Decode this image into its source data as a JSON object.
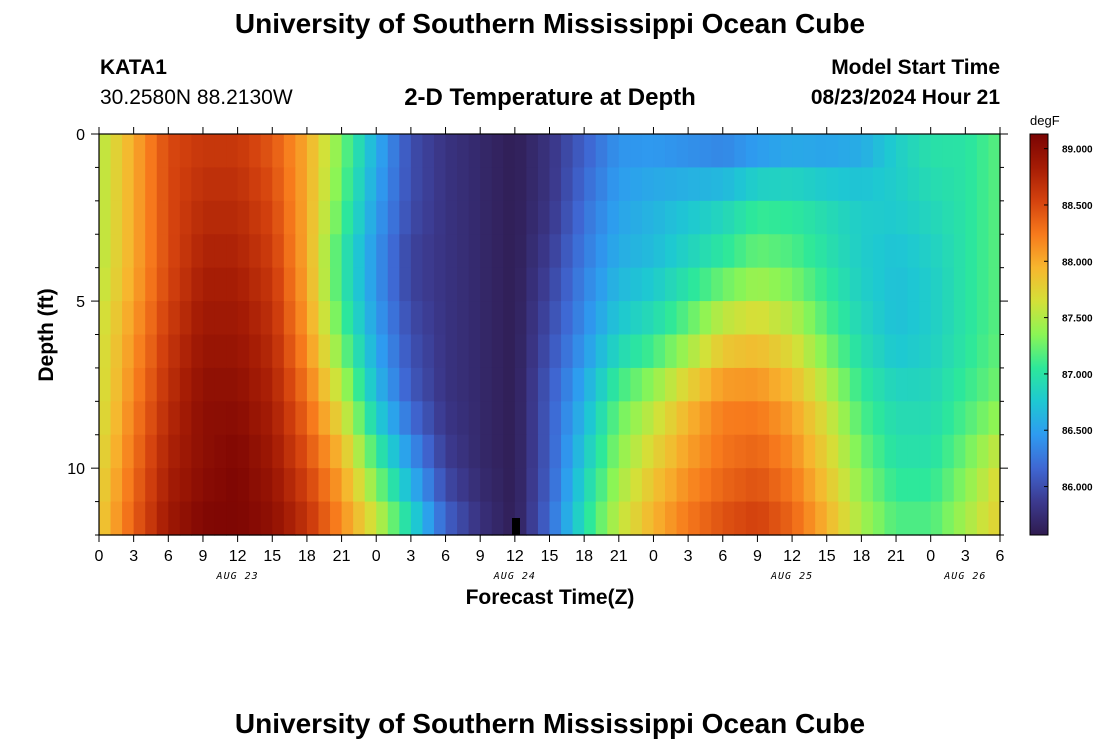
{
  "header": {
    "title": "University of Southern Mississippi Ocean Cube",
    "station_id": "KATA1",
    "coords": "30.2580N  88.2130W",
    "subtitle": "2-D Temperature at Depth",
    "model_start_label": "Model Start Time",
    "model_start_time": "08/23/2024 Hour 21"
  },
  "footer": {
    "title": "University of Southern Mississippi Ocean Cube"
  },
  "chart_data": {
    "type": "heatmap",
    "title": "2-D Temperature at Depth",
    "xlabel": "Forecast Time(Z)",
    "ylabel": "Depth (ft)",
    "x_hours_range": [
      0,
      78
    ],
    "x_ticks": [
      {
        "hour": 0,
        "label": "0"
      },
      {
        "hour": 3,
        "label": "3"
      },
      {
        "hour": 6,
        "label": "6"
      },
      {
        "hour": 9,
        "label": "9"
      },
      {
        "hour": 12,
        "label": "12"
      },
      {
        "hour": 15,
        "label": "15"
      },
      {
        "hour": 18,
        "label": "18"
      },
      {
        "hour": 21,
        "label": "21"
      },
      {
        "hour": 24,
        "label": "0"
      },
      {
        "hour": 27,
        "label": "3"
      },
      {
        "hour": 30,
        "label": "6"
      },
      {
        "hour": 33,
        "label": "9"
      },
      {
        "hour": 36,
        "label": "12"
      },
      {
        "hour": 39,
        "label": "15"
      },
      {
        "hour": 42,
        "label": "18"
      },
      {
        "hour": 45,
        "label": "21"
      },
      {
        "hour": 48,
        "label": "0"
      },
      {
        "hour": 51,
        "label": "3"
      },
      {
        "hour": 54,
        "label": "6"
      },
      {
        "hour": 57,
        "label": "9"
      },
      {
        "hour": 60,
        "label": "12"
      },
      {
        "hour": 63,
        "label": "15"
      },
      {
        "hour": 66,
        "label": "18"
      },
      {
        "hour": 69,
        "label": "21"
      },
      {
        "hour": 72,
        "label": "0"
      },
      {
        "hour": 75,
        "label": "3"
      },
      {
        "hour": 78,
        "label": "6"
      }
    ],
    "date_labels": [
      {
        "hour": 12,
        "label": "AUG 23"
      },
      {
        "hour": 36,
        "label": "AUG 24"
      },
      {
        "hour": 60,
        "label": "AUG 25"
      },
      {
        "hour": 75,
        "label": "AUG 26"
      }
    ],
    "y_range": [
      0,
      12
    ],
    "y_ticks": [
      {
        "value": 0,
        "label": "0"
      },
      {
        "value": 5,
        "label": "5"
      },
      {
        "value": 10,
        "label": "10"
      }
    ],
    "depth_levels": [
      0,
      1,
      2,
      3,
      4,
      5,
      6,
      7,
      8,
      9,
      10,
      11,
      12
    ],
    "time_step_hours": 1,
    "colorbar": {
      "unit": "degF",
      "range": [
        85.57,
        89.13
      ],
      "ticks": [
        {
          "value": 86.0,
          "label": "86.000"
        },
        {
          "value": 86.5,
          "label": "86.500"
        },
        {
          "value": 87.0,
          "label": "87.000"
        },
        {
          "value": 87.5,
          "label": "87.500"
        },
        {
          "value": 88.0,
          "label": "88.000"
        },
        {
          "value": 88.5,
          "label": "88.500"
        },
        {
          "value": 89.0,
          "label": "89.000"
        }
      ],
      "stops": [
        "#2f1b4f",
        "#3c3a8f",
        "#3f67d3",
        "#2e9bf0",
        "#1ec8d2",
        "#2de89a",
        "#8bf555",
        "#d4e038",
        "#f7b62e",
        "#f77a1c",
        "#d4420e",
        "#a51c05",
        "#7a0403"
      ]
    },
    "temperature_anchors": {
      "hours": [
        0,
        3,
        6,
        9,
        12,
        15,
        18,
        21,
        24,
        27,
        30,
        33,
        36,
        39,
        42,
        45,
        48,
        51,
        54,
        57,
        60,
        63,
        66,
        69,
        72,
        75,
        78
      ],
      "rows": [
        {
          "depth": 0,
          "values": [
            87.5,
            88.0,
            88.5,
            88.6,
            88.6,
            88.4,
            88.0,
            87.3,
            86.6,
            86.0,
            85.8,
            85.7,
            85.6,
            85.8,
            86.1,
            86.4,
            86.4,
            86.3,
            86.2,
            86.3,
            86.4,
            86.4,
            86.5,
            86.8,
            87.0,
            87.0,
            87.2
          ]
        },
        {
          "depth": 2,
          "values": [
            87.5,
            88.0,
            88.5,
            88.7,
            88.7,
            88.5,
            88.0,
            87.2,
            86.5,
            86.0,
            85.8,
            85.7,
            85.6,
            85.8,
            86.2,
            86.5,
            86.6,
            86.7,
            86.8,
            87.0,
            87.0,
            86.9,
            86.8,
            86.8,
            86.9,
            87.0,
            87.2
          ]
        },
        {
          "depth": 4,
          "values": [
            87.5,
            88.0,
            88.5,
            88.8,
            88.8,
            88.6,
            88.0,
            87.0,
            86.4,
            85.9,
            85.8,
            85.7,
            85.6,
            85.9,
            86.3,
            86.6,
            86.7,
            86.9,
            87.1,
            87.3,
            87.2,
            87.0,
            86.8,
            86.7,
            86.8,
            87.0,
            87.2
          ]
        },
        {
          "depth": 6,
          "values": [
            87.6,
            88.1,
            88.6,
            88.9,
            88.9,
            88.7,
            88.1,
            87.2,
            86.5,
            86.0,
            85.8,
            85.7,
            85.6,
            86.0,
            86.4,
            86.8,
            87.0,
            87.3,
            87.7,
            87.8,
            87.6,
            87.2,
            86.9,
            86.7,
            86.8,
            87.0,
            87.2
          ]
        },
        {
          "depth": 8,
          "values": [
            87.6,
            88.2,
            88.7,
            89.0,
            89.0,
            88.8,
            88.3,
            87.6,
            86.7,
            86.1,
            85.8,
            85.7,
            85.6,
            86.1,
            86.6,
            87.2,
            87.5,
            87.9,
            88.2,
            88.2,
            88.0,
            87.6,
            87.1,
            86.9,
            86.9,
            87.1,
            87.3
          ]
        },
        {
          "depth": 10,
          "values": [
            87.7,
            88.3,
            88.8,
            89.0,
            89.1,
            88.9,
            88.5,
            88.0,
            87.2,
            86.5,
            85.9,
            85.7,
            85.6,
            86.1,
            86.8,
            87.4,
            87.8,
            88.1,
            88.3,
            88.4,
            88.2,
            87.8,
            87.3,
            87.0,
            87.0,
            87.3,
            87.7
          ]
        },
        {
          "depth": 12,
          "values": [
            87.8,
            88.4,
            88.9,
            89.1,
            89.1,
            89.0,
            88.7,
            88.2,
            87.7,
            87.0,
            86.2,
            85.8,
            85.6,
            86.2,
            87.0,
            87.6,
            88.0,
            88.3,
            88.5,
            88.6,
            88.4,
            88.0,
            87.5,
            87.2,
            87.2,
            87.5,
            87.8
          ]
        }
      ]
    }
  }
}
